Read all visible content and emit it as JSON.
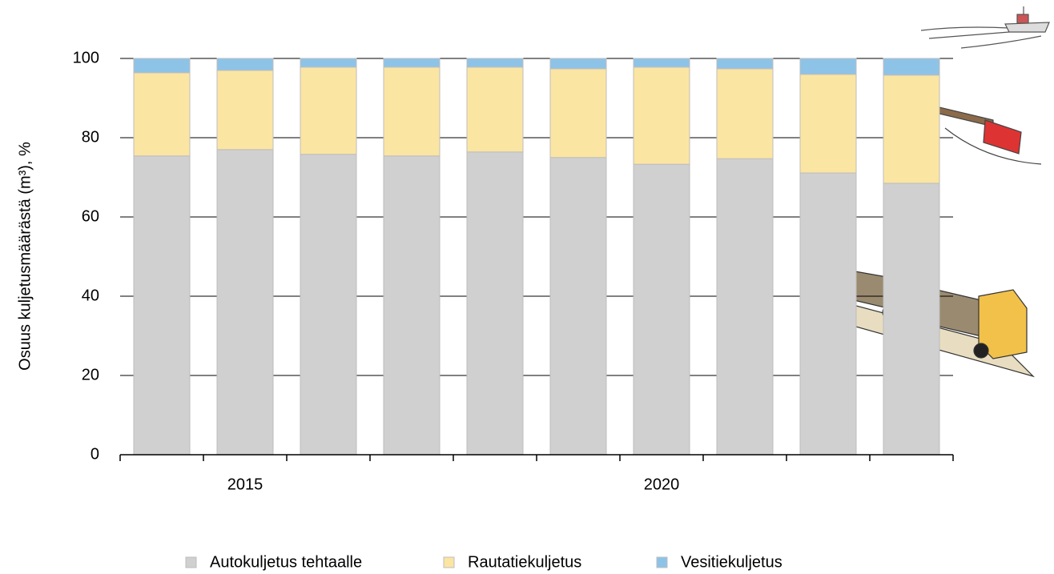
{
  "chart_data": {
    "type": "stacked-bar",
    "y_label": "Osuus kuljetusmäärästä (m³), %",
    "categories": [
      null,
      "2015",
      null,
      null,
      null,
      null,
      "2020",
      null,
      null,
      null
    ],
    "series": [
      {
        "name": "Autokuljetus tehtaalle",
        "color": "#d0d0d0",
        "values": [
          75.4,
          77.0,
          75.8,
          75.4,
          76.4,
          75.0,
          73.3,
          74.7,
          71.1,
          68.5
        ]
      },
      {
        "name": "Rautatiekuljetus",
        "color": "#fbe5a3",
        "values": [
          21.0,
          20.0,
          22.0,
          22.4,
          21.4,
          22.4,
          24.5,
          22.7,
          24.9,
          27.3
        ]
      },
      {
        "name": "Vesitiekuljetus",
        "color": "#8ec3e8",
        "values": [
          3.6,
          3.0,
          2.2,
          2.2,
          2.2,
          2.6,
          2.2,
          2.6,
          4.0,
          4.2
        ]
      }
    ],
    "ylim": [
      0,
      100
    ],
    "yticks": [
      0,
      20,
      40,
      60,
      80,
      100
    ],
    "grid": true,
    "legend": "bottom"
  }
}
